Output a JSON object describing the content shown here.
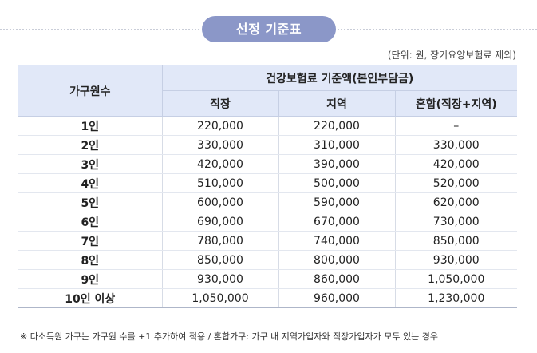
{
  "title": "선정 기준표",
  "unit_note": "(단위: 원, 장기요양보험료 제외)",
  "table": {
    "col_household": "가구원수",
    "group_header": "건강보험료 기준액(본인부담금)",
    "sub_headers": [
      "직장",
      "지역",
      "혼합(직장+지역)"
    ],
    "rows": [
      {
        "size": "1인",
        "work": "220,000",
        "region": "220,000",
        "mixed": "–"
      },
      {
        "size": "2인",
        "work": "330,000",
        "region": "310,000",
        "mixed": "330,000"
      },
      {
        "size": "3인",
        "work": "420,000",
        "region": "390,000",
        "mixed": "420,000"
      },
      {
        "size": "4인",
        "work": "510,000",
        "region": "500,000",
        "mixed": "520,000"
      },
      {
        "size": "5인",
        "work": "600,000",
        "region": "590,000",
        "mixed": "620,000"
      },
      {
        "size": "6인",
        "work": "690,000",
        "region": "670,000",
        "mixed": "730,000"
      },
      {
        "size": "7인",
        "work": "780,000",
        "region": "740,000",
        "mixed": "850,000"
      },
      {
        "size": "8인",
        "work": "850,000",
        "region": "800,000",
        "mixed": "930,000"
      },
      {
        "size": "9인",
        "work": "930,000",
        "region": "860,000",
        "mixed": "1,050,000"
      },
      {
        "size": "10인 이상",
        "work": "1,050,000",
        "region": "960,000",
        "mixed": "1,230,000"
      }
    ]
  },
  "footnote": "※ 다소득원 가구는 가구원 수를 +1 추가하여 적용 / 혼합가구: 가구 내 지역가입자와 직장가입자가 모두 있는 경우"
}
